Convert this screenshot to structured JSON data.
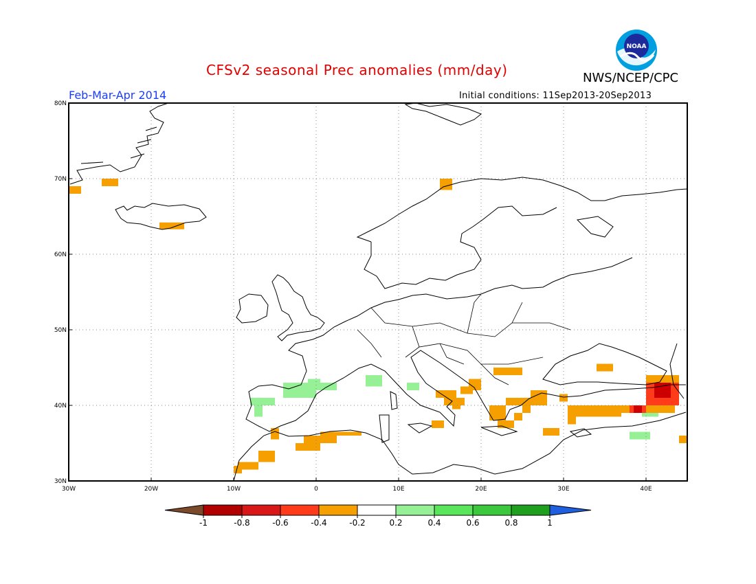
{
  "header": {
    "title": "CFSv2 seasonal Prec anomalies (mm/day)",
    "organization": "NWS/NCEP/CPC",
    "logo_text": "NOAA",
    "period": "Feb-Mar-Apr 2014",
    "initial_conditions": "Initial conditions: 11Sep2013-20Sep2013"
  },
  "map": {
    "lon_range": [
      -30,
      45
    ],
    "lat_range": [
      30,
      80
    ],
    "lon_ticks": [
      {
        "value": -30,
        "label": "30W"
      },
      {
        "value": -20,
        "label": "20W"
      },
      {
        "value": -10,
        "label": "10W"
      },
      {
        "value": 0,
        "label": "0"
      },
      {
        "value": 10,
        "label": "10E"
      },
      {
        "value": 20,
        "label": "20E"
      },
      {
        "value": 30,
        "label": "30E"
      },
      {
        "value": 40,
        "label": "40E"
      }
    ],
    "lat_ticks": [
      {
        "value": 30,
        "label": "30N"
      },
      {
        "value": 40,
        "label": "40N"
      },
      {
        "value": 50,
        "label": "50N"
      },
      {
        "value": 60,
        "label": "60N"
      },
      {
        "value": 70,
        "label": "70N"
      },
      {
        "value": 80,
        "label": "80N"
      }
    ],
    "grid": true,
    "anomaly_cells": [
      {
        "lon": -30,
        "lat": 68,
        "lon2": -28.5,
        "lat2": 69,
        "color": "#f5a000"
      },
      {
        "lon": -26,
        "lat": 69,
        "lon2": -24,
        "lat2": 70,
        "color": "#f5a000"
      },
      {
        "lon": -19,
        "lat": 63.3,
        "lon2": -16,
        "lat2": 64.2,
        "color": "#f5a000"
      },
      {
        "lon": 15,
        "lat": 68.5,
        "lon2": 16.5,
        "lat2": 70,
        "color": "#f5a000"
      },
      {
        "lon": -7.5,
        "lat": 38.5,
        "lon2": -6.5,
        "lat2": 40,
        "color": "#96f096"
      },
      {
        "lon": -8,
        "lat": 40,
        "lon2": -5,
        "lat2": 41,
        "color": "#96f096"
      },
      {
        "lon": -4,
        "lat": 41,
        "lon2": 0,
        "lat2": 42.5,
        "color": "#96f096"
      },
      {
        "lon": -4,
        "lat": 42.5,
        "lon2": -1,
        "lat2": 43,
        "color": "#96f096"
      },
      {
        "lon": -1,
        "lat": 42,
        "lon2": 2.5,
        "lat2": 43,
        "color": "#96f096"
      },
      {
        "lon": -1,
        "lat": 43,
        "lon2": 0.5,
        "lat2": 43.5,
        "color": "#96f096"
      },
      {
        "lon": 6,
        "lat": 42.5,
        "lon2": 8,
        "lat2": 44,
        "color": "#96f096"
      },
      {
        "lon": 11,
        "lat": 42,
        "lon2": 12.5,
        "lat2": 43,
        "color": "#96f096"
      },
      {
        "lon": 39.5,
        "lat": 38.5,
        "lon2": 41.5,
        "lat2": 39.5,
        "color": "#96f096"
      },
      {
        "lon": 38,
        "lat": 35.5,
        "lon2": 40.5,
        "lat2": 36.5,
        "color": "#96f096"
      },
      {
        "lon": -5.5,
        "lat": 35.5,
        "lon2": -4.5,
        "lat2": 37,
        "color": "#f5a000"
      },
      {
        "lon": -7,
        "lat": 32.5,
        "lon2": -5,
        "lat2": 34,
        "color": "#f5a000"
      },
      {
        "lon": -9.5,
        "lat": 31.5,
        "lon2": -7,
        "lat2": 32.5,
        "color": "#f5a000"
      },
      {
        "lon": -10,
        "lat": 31,
        "lon2": -9,
        "lat2": 32,
        "color": "#f5a000"
      },
      {
        "lon": -2.5,
        "lat": 34,
        "lon2": 0.5,
        "lat2": 35,
        "color": "#f5a000"
      },
      {
        "lon": -1.5,
        "lat": 35,
        "lon2": 2.5,
        "lat2": 36,
        "color": "#f5a000"
      },
      {
        "lon": 0.5,
        "lat": 36,
        "lon2": 5,
        "lat2": 36.5,
        "color": "#f5a000"
      },
      {
        "lon": 5,
        "lat": 36,
        "lon2": 5.5,
        "lat2": 36.5,
        "color": "#f5a000"
      },
      {
        "lon": 14.5,
        "lat": 41,
        "lon2": 17,
        "lat2": 42,
        "color": "#f5a000"
      },
      {
        "lon": 15.5,
        "lat": 40,
        "lon2": 18,
        "lat2": 41,
        "color": "#f5a000"
      },
      {
        "lon": 16.5,
        "lat": 39.5,
        "lon2": 17.5,
        "lat2": 40,
        "color": "#f5a000"
      },
      {
        "lon": 14,
        "lat": 37,
        "lon2": 15.5,
        "lat2": 38,
        "color": "#f5a000"
      },
      {
        "lon": 17.5,
        "lat": 41.5,
        "lon2": 19,
        "lat2": 42.5,
        "color": "#f5a000"
      },
      {
        "lon": 18.5,
        "lat": 42,
        "lon2": 20,
        "lat2": 43.5,
        "color": "#f5a000"
      },
      {
        "lon": 21.5,
        "lat": 44,
        "lon2": 25,
        "lat2": 45,
        "color": "#f5a000"
      },
      {
        "lon": 21,
        "lat": 38,
        "lon2": 23,
        "lat2": 40,
        "color": "#f5a000"
      },
      {
        "lon": 22,
        "lat": 37,
        "lon2": 24,
        "lat2": 38,
        "color": "#f5a000"
      },
      {
        "lon": 23,
        "lat": 40,
        "lon2": 28,
        "lat2": 41,
        "color": "#f5a000"
      },
      {
        "lon": 26,
        "lat": 41,
        "lon2": 28,
        "lat2": 42,
        "color": "#f5a000"
      },
      {
        "lon": 25,
        "lat": 39,
        "lon2": 26,
        "lat2": 40,
        "color": "#f5a000"
      },
      {
        "lon": 24,
        "lat": 38,
        "lon2": 25,
        "lat2": 39,
        "color": "#f5a000"
      },
      {
        "lon": 27.5,
        "lat": 36,
        "lon2": 29.5,
        "lat2": 37,
        "color": "#f5a000"
      },
      {
        "lon": 29.5,
        "lat": 40.5,
        "lon2": 30.5,
        "lat2": 41.5,
        "color": "#f5a000"
      },
      {
        "lon": 30.5,
        "lat": 37.5,
        "lon2": 31.5,
        "lat2": 40,
        "color": "#f5a000"
      },
      {
        "lon": 31.5,
        "lat": 38.5,
        "lon2": 37,
        "lat2": 40,
        "color": "#f5a000"
      },
      {
        "lon": 37,
        "lat": 39,
        "lon2": 38,
        "lat2": 40,
        "color": "#f5a000"
      },
      {
        "lon": 34,
        "lat": 44.5,
        "lon2": 36,
        "lat2": 45.5,
        "color": "#f5a000"
      },
      {
        "lon": 38,
        "lat": 39,
        "lon2": 40,
        "lat2": 40,
        "color": "#ff3b1a"
      },
      {
        "lon": 38.5,
        "lat": 39,
        "lon2": 39.5,
        "lat2": 40,
        "color": "#cc0000"
      },
      {
        "lon": 40,
        "lat": 39,
        "lon2": 43.5,
        "lat2": 40,
        "color": "#f5a000"
      },
      {
        "lon": 40,
        "lat": 43,
        "lon2": 44,
        "lat2": 44,
        "color": "#f5a000"
      },
      {
        "lon": 40,
        "lat": 40,
        "lon2": 44,
        "lat2": 43,
        "color": "#ff3b1a"
      },
      {
        "lon": 41,
        "lat": 41,
        "lon2": 43,
        "lat2": 43,
        "color": "#cc0000"
      },
      {
        "lon": 44,
        "lat": 35,
        "lon2": 45,
        "lat2": 36,
        "color": "#f5a000"
      }
    ]
  },
  "colorbar": {
    "labels": [
      "-1",
      "-0.8",
      "-0.6",
      "-0.4",
      "-0.2",
      "0.2",
      "0.4",
      "0.6",
      "0.8",
      "1"
    ],
    "under_color": "#7a4a2a",
    "over_color": "#2060e0",
    "colors": [
      "#b00000",
      "#d81818",
      "#ff3b1a",
      "#f5a000",
      "#ffffff",
      "#96f096",
      "#5ae65a",
      "#3cc83c",
      "#1ea01e"
    ]
  }
}
